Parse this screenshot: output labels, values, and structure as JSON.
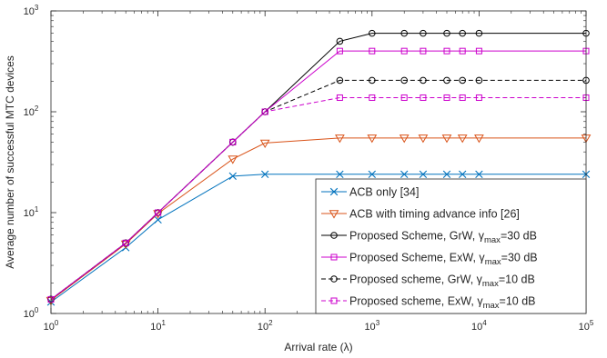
{
  "chart_data": {
    "type": "line",
    "title": "",
    "xlabel": "Arrival rate (λ)",
    "ylabel": "Average number of successful MTC devices",
    "xscale": "log",
    "yscale": "log",
    "xlim": [
      1,
      100000
    ],
    "ylim": [
      1,
      1000
    ],
    "xticks": [
      {
        "value": 1,
        "base": "10",
        "exp": "0"
      },
      {
        "value": 10,
        "base": "10",
        "exp": "1"
      },
      {
        "value": 100,
        "base": "10",
        "exp": "2"
      },
      {
        "value": 1000,
        "base": "10",
        "exp": "3"
      },
      {
        "value": 10000,
        "base": "10",
        "exp": "4"
      },
      {
        "value": 100000,
        "base": "10",
        "exp": "5"
      }
    ],
    "yticks": [
      {
        "value": 1,
        "base": "10",
        "exp": "0"
      },
      {
        "value": 10,
        "base": "10",
        "exp": "1"
      },
      {
        "value": 100,
        "base": "10",
        "exp": "2"
      },
      {
        "value": 1000,
        "base": "10",
        "exp": "3"
      }
    ],
    "grid": false,
    "legend_position": "bottom-right",
    "x": [
      1,
      5,
      10,
      50,
      100,
      500,
      1000,
      2000,
      3000,
      5000,
      7000,
      10000,
      100000
    ],
    "series": [
      {
        "name": "ACB only [34]",
        "color": "#0072BD",
        "marker": "x",
        "dash": "solid",
        "values": [
          1.3,
          4.5,
          8.5,
          23,
          24,
          24,
          24,
          24,
          24,
          24,
          24,
          24,
          24
        ]
      },
      {
        "name": "ACB with timing advance info [26]",
        "color": "#D95319",
        "marker": "triangle-down",
        "dash": "solid",
        "values": [
          1.35,
          4.9,
          9.8,
          34,
          49,
          55,
          55,
          55,
          55,
          55,
          55,
          55,
          55
        ]
      },
      {
        "name": "Proposed Scheme, GrW, γmax=30 dB",
        "label_parts": {
          "pre": "Proposed Scheme, GrW, ",
          "sym": "γ",
          "sub": "max",
          "post": "=30 dB"
        },
        "color": "#000000",
        "marker": "circle",
        "dash": "solid",
        "values": [
          1.38,
          5,
          10,
          50,
          100,
          500,
          600,
          600,
          600,
          600,
          600,
          600,
          600
        ]
      },
      {
        "name": "Proposed Scheme, ExW, γmax=30 dB",
        "label_parts": {
          "pre": "Proposed Scheme, ExW, ",
          "sym": "γ",
          "sub": "max",
          "post": "=30 dB"
        },
        "color": "#CC00CC",
        "marker": "square",
        "dash": "solid",
        "values": [
          1.38,
          5,
          10,
          50,
          100,
          400,
          400,
          400,
          400,
          400,
          400,
          400,
          400
        ]
      },
      {
        "name": "Proposed scheme, GrW, γmax=10 dB",
        "label_parts": {
          "pre": "Proposed scheme, GrW, ",
          "sym": "γ",
          "sub": "max",
          "post": "=10 dB"
        },
        "color": "#000000",
        "marker": "circle",
        "dash": "dashed",
        "values": [
          1.38,
          5,
          10,
          50,
          100,
          205,
          205,
          205,
          205,
          205,
          205,
          205,
          205
        ]
      },
      {
        "name": "Proposed scheme, ExW, γmax=10 dB",
        "label_parts": {
          "pre": "Proposed scheme, ExW, ",
          "sym": "γ",
          "sub": "max",
          "post": "=10 dB"
        },
        "color": "#CC00CC",
        "marker": "square",
        "dash": "dashed",
        "values": [
          1.38,
          5,
          10,
          50,
          100,
          138,
          138,
          138,
          138,
          138,
          138,
          138,
          138
        ]
      }
    ]
  }
}
